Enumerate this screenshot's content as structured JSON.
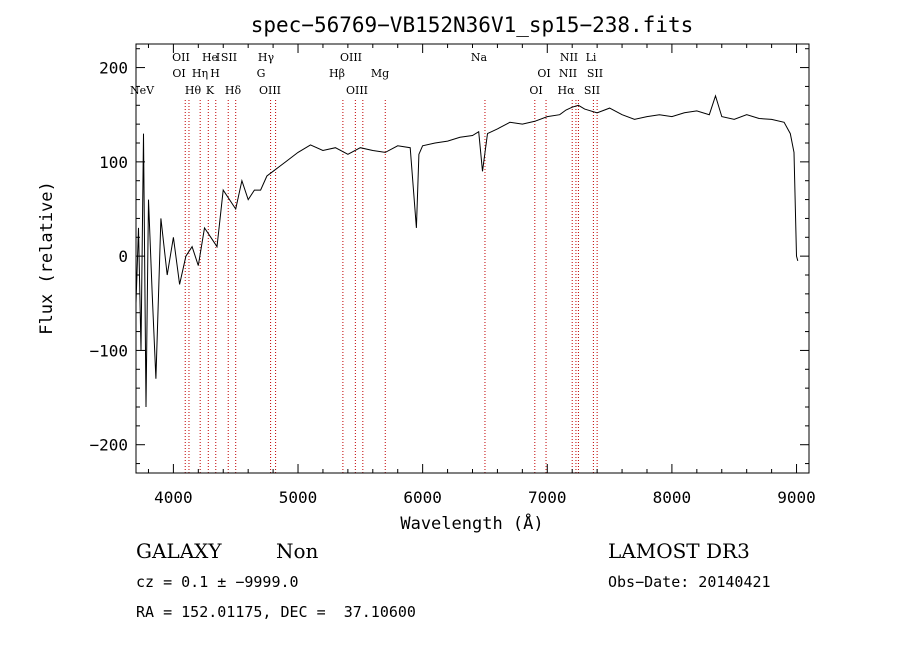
{
  "chart_data": {
    "type": "line",
    "title": "spec−56769−VB152N36V1_sp15−238.fits",
    "xlabel": "Wavelength (Å)",
    "ylabel": "Flux (relative)",
    "xlim": [
      3700,
      9100
    ],
    "ylim": [
      -230,
      225
    ],
    "xticks": [
      4000,
      5000,
      6000,
      7000,
      8000,
      9000
    ],
    "yticks": [
      -200,
      -100,
      0,
      100,
      200
    ],
    "ytick_labels": [
      "−200",
      "−100",
      "0",
      "100",
      "200"
    ],
    "line_color": "#000000",
    "marker_color": "#c00000",
    "series": [
      {
        "name": "flux",
        "x": [
          3700,
          3720,
          3740,
          3760,
          3780,
          3800,
          3830,
          3860,
          3900,
          3950,
          4000,
          4050,
          4100,
          4150,
          4200,
          4250,
          4300,
          4350,
          4400,
          4450,
          4500,
          4550,
          4600,
          4650,
          4700,
          4750,
          4800,
          4850,
          4900,
          5000,
          5100,
          5200,
          5300,
          5400,
          5500,
          5600,
          5700,
          5800,
          5900,
          5950,
          5970,
          6000,
          6100,
          6200,
          6300,
          6400,
          6450,
          6480,
          6520,
          6600,
          6700,
          6800,
          6900,
          7000,
          7100,
          7150,
          7200,
          7250,
          7300,
          7400,
          7500,
          7600,
          7700,
          7800,
          7900,
          8000,
          8100,
          8200,
          8300,
          8350,
          8400,
          8500,
          8600,
          8700,
          8800,
          8900,
          8950,
          8980,
          9000,
          9010
        ],
        "y": [
          -50,
          30,
          -100,
          130,
          -160,
          60,
          -40,
          -130,
          40,
          -20,
          20,
          -30,
          0,
          10,
          -10,
          30,
          20,
          10,
          70,
          60,
          50,
          80,
          60,
          70,
          70,
          85,
          90,
          95,
          100,
          110,
          118,
          112,
          115,
          108,
          115,
          112,
          110,
          117,
          115,
          30,
          108,
          117,
          120,
          122,
          126,
          128,
          132,
          90,
          130,
          135,
          142,
          140,
          143,
          148,
          150,
          155,
          158,
          160,
          156,
          152,
          157,
          150,
          145,
          148,
          150,
          148,
          152,
          154,
          150,
          170,
          148,
          145,
          150,
          146,
          145,
          142,
          130,
          110,
          0,
          -5
        ]
      }
    ],
    "annotations": [
      {
        "label": "NeV",
        "x": 3426,
        "row": 3
      },
      {
        "label": "OII",
        "x": 3727,
        "row": 0
      },
      {
        "label": "OI",
        "x": 3869,
        "row": 1
      },
      {
        "label": "Hθ",
        "x": 3798,
        "row": 2
      },
      {
        "label": "He",
        "x": 3889,
        "row": 0
      },
      {
        "label": "Hη",
        "x": 3835,
        "row": 1
      },
      {
        "label": "K",
        "x": 3934,
        "row": 2
      },
      {
        "label": "I",
        "x": 3968,
        "row": 0
      },
      {
        "label": "H",
        "x": 3968,
        "row": 1
      },
      {
        "label": "SII",
        "x": 4072,
        "row": 0
      },
      {
        "label": "Hδ",
        "x": 4102,
        "row": 2
      },
      {
        "label": "Hγ",
        "x": 4340,
        "row": 0
      },
      {
        "label": "G",
        "x": 4304,
        "row": 1
      },
      {
        "label": "OIII",
        "x": 4363,
        "row": 2
      },
      {
        "label": "OIII",
        "x": 4959,
        "row": 0
      },
      {
        "label": "Hβ",
        "x": 4861,
        "row": 1
      },
      {
        "label": "OIII",
        "x": 5007,
        "row": 2
      },
      {
        "label": "Mg",
        "x": 5175,
        "row": 1
      },
      {
        "label": "Na",
        "x": 5894,
        "row": 0
      },
      {
        "label": "OI",
        "x": 6300,
        "row": 1
      },
      {
        "label": "OI",
        "x": 6364,
        "row": 2
      },
      {
        "label": "NII",
        "x": 6583,
        "row": 0
      },
      {
        "label": "NII",
        "x": 6548,
        "row": 1
      },
      {
        "label": "Hα",
        "x": 6563,
        "row": 2
      },
      {
        "label": "Li",
        "x": 6708,
        "row": 0
      },
      {
        "label": "SII",
        "x": 6717,
        "row": 1
      },
      {
        "label": "SII",
        "x": 6731,
        "row": 2
      }
    ],
    "marker_lines": [
      4095,
      4125,
      4215,
      4280,
      4340,
      4440,
      4500,
      4780,
      4820,
      5360,
      5460,
      5520,
      5700,
      6500,
      6900,
      6990,
      7200,
      7230,
      7250,
      7370,
      7400
    ]
  },
  "info": {
    "object_type": "GALAXY",
    "subclass": "Non",
    "survey": "LAMOST DR3",
    "cz": "cz = 0.1 ± −9999.0",
    "obs_date": "Obs−Date: 20140421",
    "coords": "RA = 152.01175, DEC =  37.10600"
  }
}
